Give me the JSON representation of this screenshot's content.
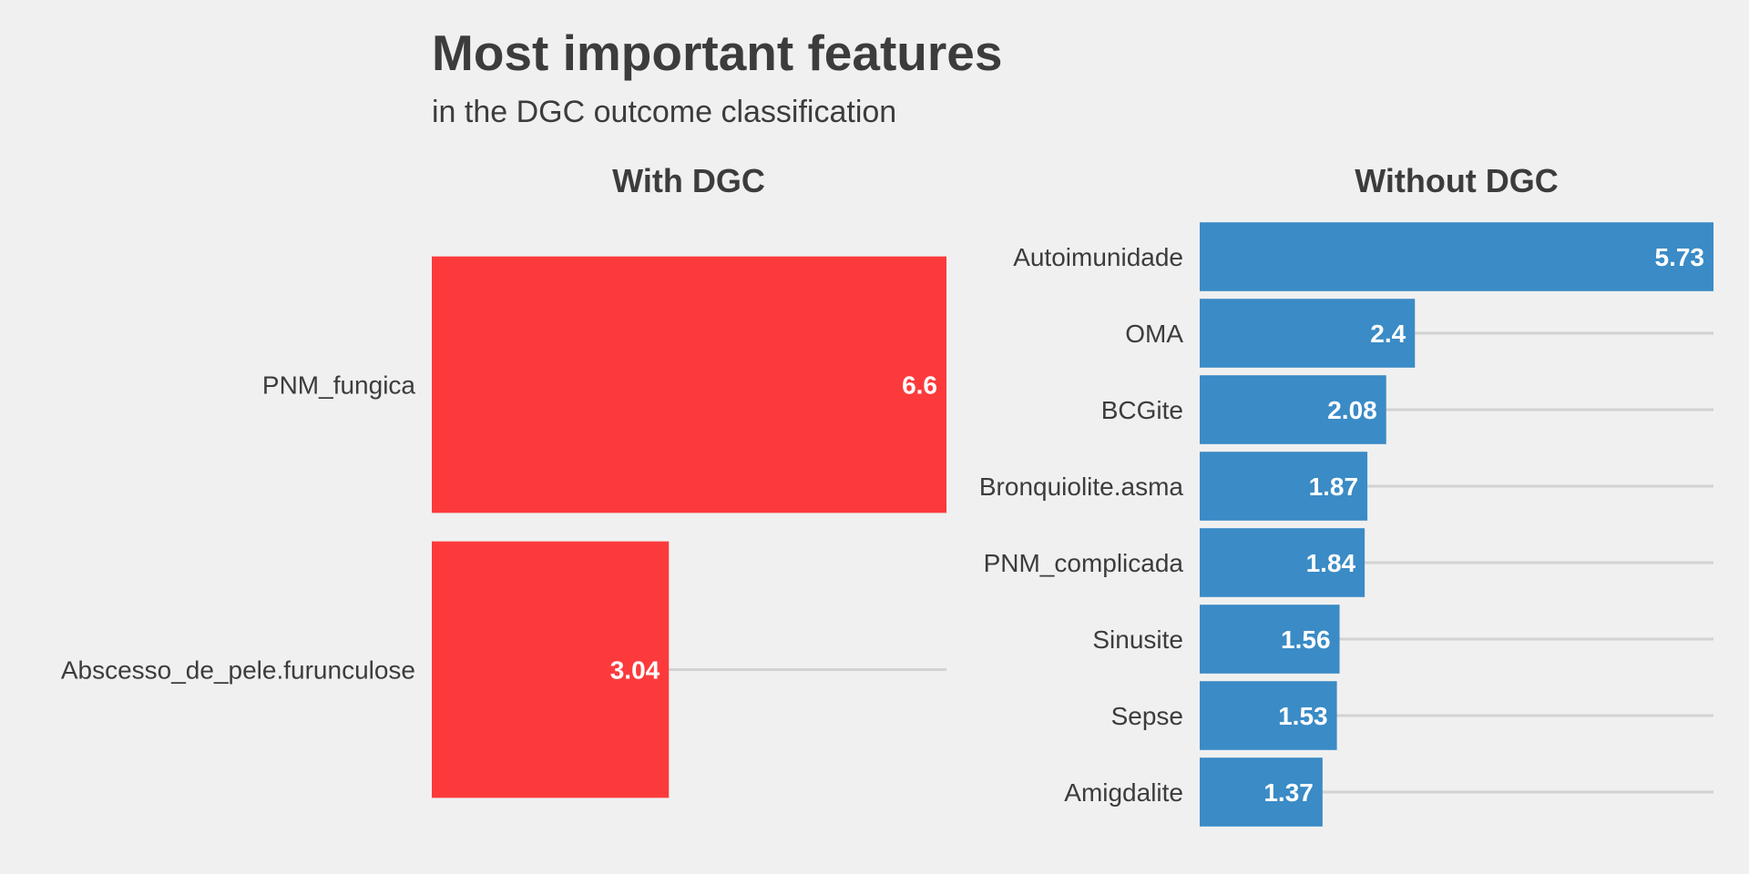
{
  "chart_data": {
    "type": "bar",
    "orientation": "horizontal",
    "title": "Most important features",
    "subtitle": "in the DGC outcome classification",
    "panels": [
      {
        "name": "With DGC",
        "color": "#fc3a3c",
        "categories": [
          "PNM_fungica",
          "Abscesso_de_pele.furunculose"
        ],
        "values": [
          6.6,
          3.04
        ],
        "value_labels": [
          "6.6",
          "3.04"
        ],
        "xlim": [
          0,
          6.6
        ]
      },
      {
        "name": "Without DGC",
        "color": "#3a8bc6",
        "categories": [
          "Autoimunidade",
          "OMA",
          "BCGite",
          "Bronquiolite.asma",
          "PNM_complicada",
          "Sinusite",
          "Sepse",
          "Amigdalite"
        ],
        "values": [
          5.73,
          2.4,
          2.08,
          1.87,
          1.84,
          1.56,
          1.53,
          1.37
        ],
        "value_labels": [
          "5.73",
          "2.4",
          "2.08",
          "1.87",
          "1.84",
          "1.56",
          "1.53",
          "1.37"
        ],
        "xlim": [
          0,
          5.73
        ]
      }
    ],
    "grid": true,
    "legend": "none"
  }
}
